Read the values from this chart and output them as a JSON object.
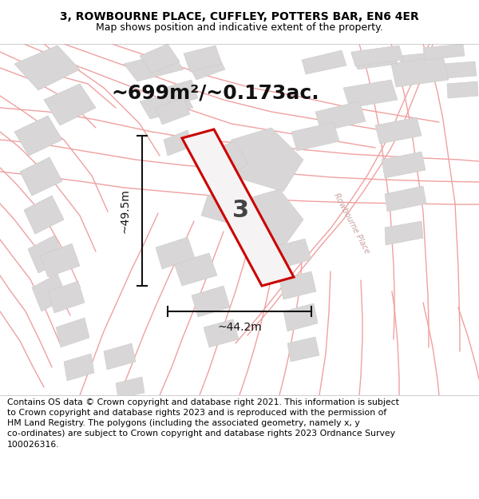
{
  "title_line1": "3, ROWBOURNE PLACE, CUFFLEY, POTTERS BAR, EN6 4ER",
  "title_line2": "Map shows position and indicative extent of the property.",
  "footer_text": "Contains OS data © Crown copyright and database right 2021. This information is subject to Crown copyright and database rights 2023 and is reproduced with the permission of HM Land Registry. The polygons (including the associated geometry, namely x, y co-ordinates) are subject to Crown copyright and database rights 2023 Ordnance Survey 100026316.",
  "area_label": "~699m²/~0.173ac.",
  "width_label": "~44.2m",
  "height_label": "~49.5m",
  "plot_number": "3",
  "map_bg": "#f2f0f0",
  "plot_fill": "#f5f3f3",
  "plot_edge": "#cc0000",
  "road_color": "#f0a0a0",
  "road_lw": 1.0,
  "building_fill": "#d8d6d6",
  "building_edge": "#cccccc",
  "dim_line_color": "#111111",
  "title_fontsize": 10,
  "subtitle_fontsize": 9,
  "footer_fontsize": 7.8,
  "area_fontsize": 18,
  "plot_num_fontsize": 22,
  "dim_fontsize": 10,
  "road_label_fontsize": 7,
  "road_label_color": "#c8a0a0",
  "road_label_rotation": -62
}
